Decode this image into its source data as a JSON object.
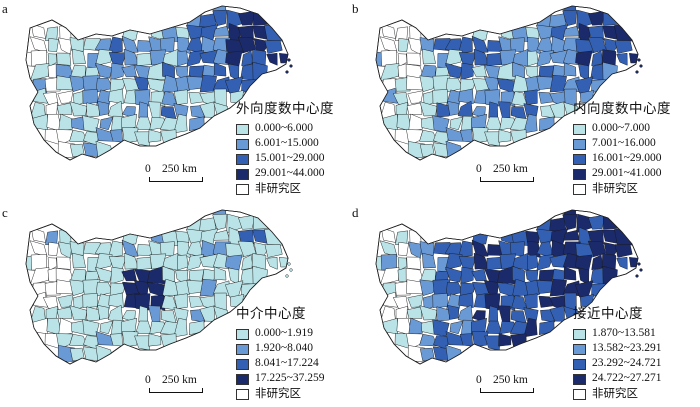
{
  "panels": [
    {
      "letter": "a",
      "legend_title": "外向度数中心度",
      "classes": [
        "0.000~6.000",
        "6.001~15.000",
        "15.001~29.000",
        "29.001~44.000"
      ],
      "no_study": "非研究区"
    },
    {
      "letter": "b",
      "legend_title": "内向度数中心度",
      "classes": [
        "0.000~7.000",
        "7.001~16.000",
        "16.001~29.000",
        "29.001~41.000"
      ],
      "no_study": "非研究区"
    },
    {
      "letter": "c",
      "legend_title": "中介中心度",
      "classes": [
        "0.000~1.919",
        "1.920~8.040",
        "8.041~17.224",
        "17.225~37.259"
      ],
      "no_study": "非研究区"
    },
    {
      "letter": "d",
      "legend_title": "接近中心度",
      "classes": [
        "1.870~13.581",
        "13.582~23.291",
        "23.292~24.721",
        "24.722~27.271"
      ],
      "no_study": "非研究区"
    }
  ],
  "scale": {
    "zero": "0",
    "label": "250 km"
  },
  "colors": {
    "c1": "#b9e3e6",
    "c2": "#6a9ad6",
    "c3": "#3360b3",
    "c4": "#1b2a6b",
    "none": "#ffffff"
  }
}
